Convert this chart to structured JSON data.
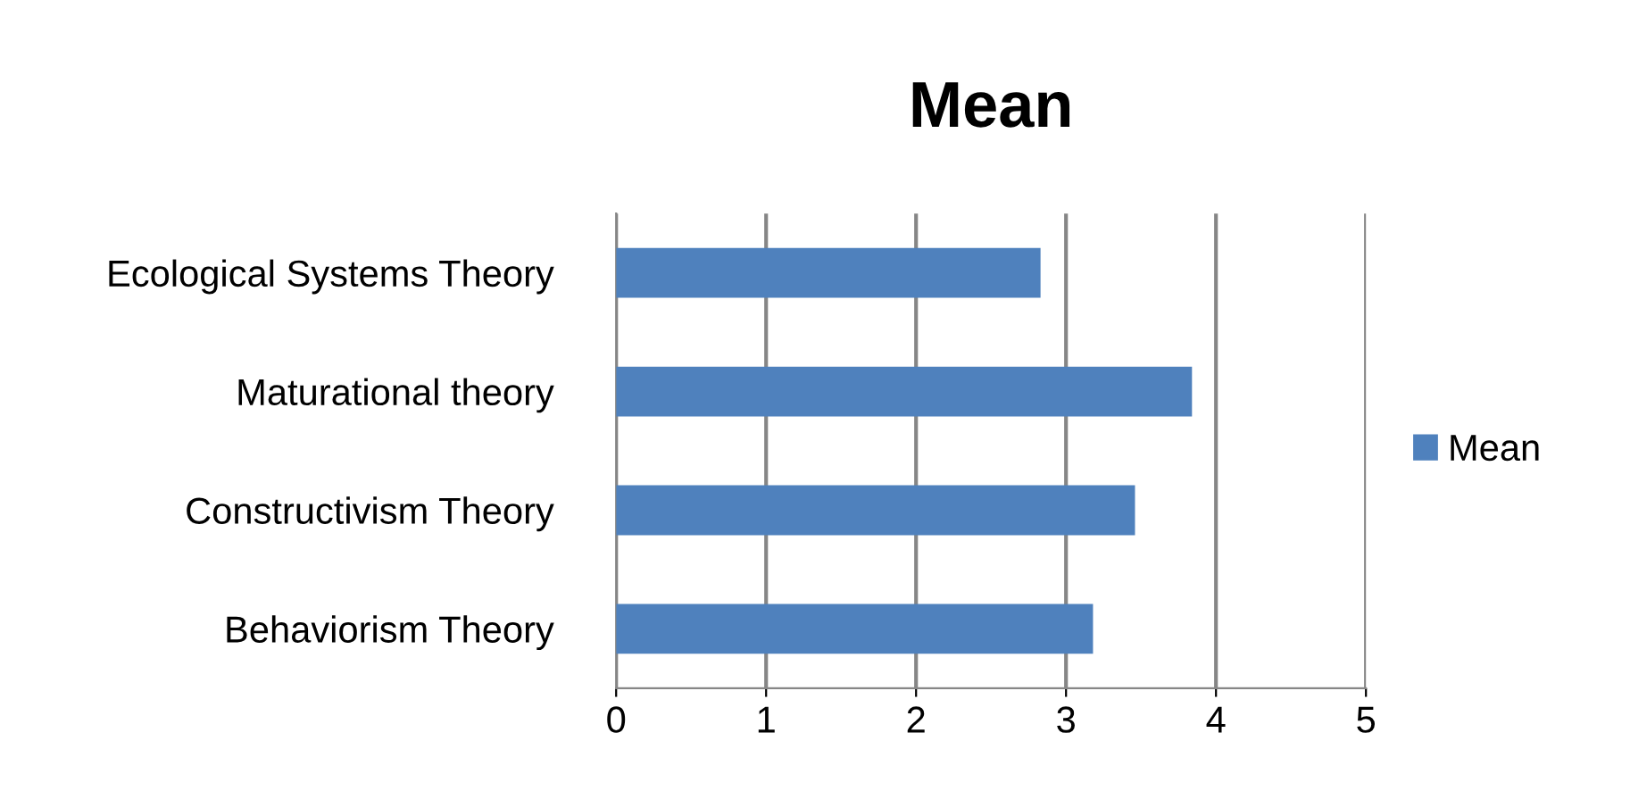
{
  "chart_data": {
    "type": "bar",
    "orientation": "horizontal",
    "title": "Mean",
    "categories": [
      "Ecological Systems Theory",
      "Maturational theory",
      "Constructivism Theory",
      "Behaviorism Theory"
    ],
    "series": [
      {
        "name": "Mean",
        "color": "#4f81bd",
        "values": [
          2.83,
          3.84,
          3.46,
          3.18
        ]
      }
    ],
    "xlim": [
      0,
      5
    ],
    "xticks": [
      0,
      1,
      2,
      3,
      4,
      5
    ],
    "grid": "x",
    "legend": "right"
  }
}
